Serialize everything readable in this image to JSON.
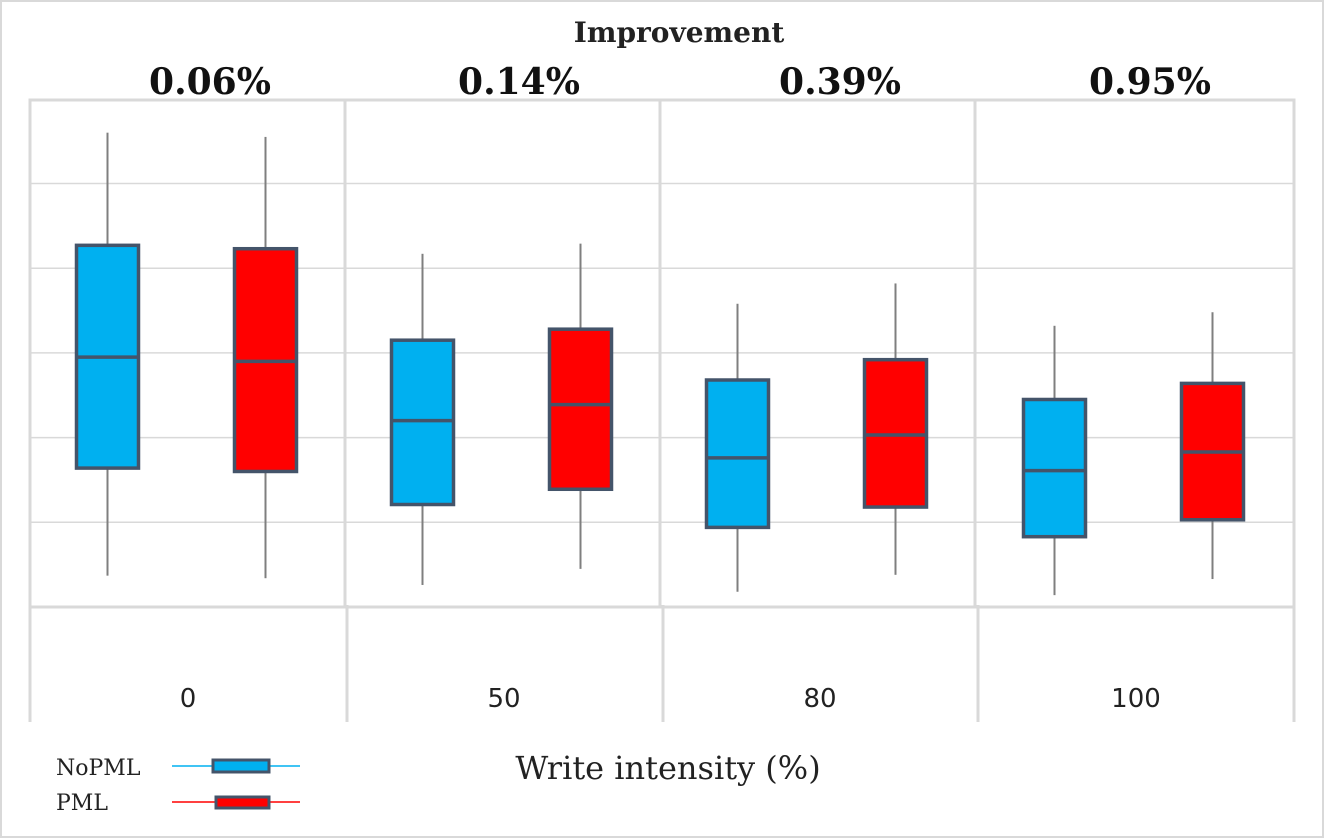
{
  "chart_data": {
    "type": "box",
    "title": "Improvement",
    "xlabel": "Write intensity (%)",
    "ylabel": "",
    "categories": [
      "0",
      "50",
      "80",
      "100"
    ],
    "improvements": [
      "0.06%",
      "0.14%",
      "0.39%",
      "0.95%"
    ],
    "ylim": [
      0,
      6
    ],
    "grid": true,
    "legend_position": "bottom-left",
    "series": [
      {
        "name": "NoPML",
        "color": "#00B0F0",
        "boxes": [
          {
            "min": 0.37,
            "q1": 1.64,
            "median": 2.95,
            "q3": 4.27,
            "max": 5.6
          },
          {
            "min": 0.26,
            "q1": 1.21,
            "median": 2.2,
            "q3": 3.15,
            "max": 4.17
          },
          {
            "min": 0.18,
            "q1": 0.94,
            "median": 1.76,
            "q3": 2.68,
            "max": 3.58
          },
          {
            "min": 0.14,
            "q1": 0.83,
            "median": 1.61,
            "q3": 2.45,
            "max": 3.32
          }
        ]
      },
      {
        "name": "PML",
        "color": "#FF0000",
        "boxes": [
          {
            "min": 0.34,
            "q1": 1.6,
            "median": 2.9,
            "q3": 4.23,
            "max": 5.55
          },
          {
            "min": 0.45,
            "q1": 1.39,
            "median": 2.39,
            "q3": 3.28,
            "max": 4.29
          },
          {
            "min": 0.38,
            "q1": 1.18,
            "median": 2.03,
            "q3": 2.92,
            "max": 3.82
          },
          {
            "min": 0.33,
            "q1": 1.03,
            "median": 1.83,
            "q3": 2.64,
            "max": 3.48
          }
        ]
      }
    ]
  }
}
